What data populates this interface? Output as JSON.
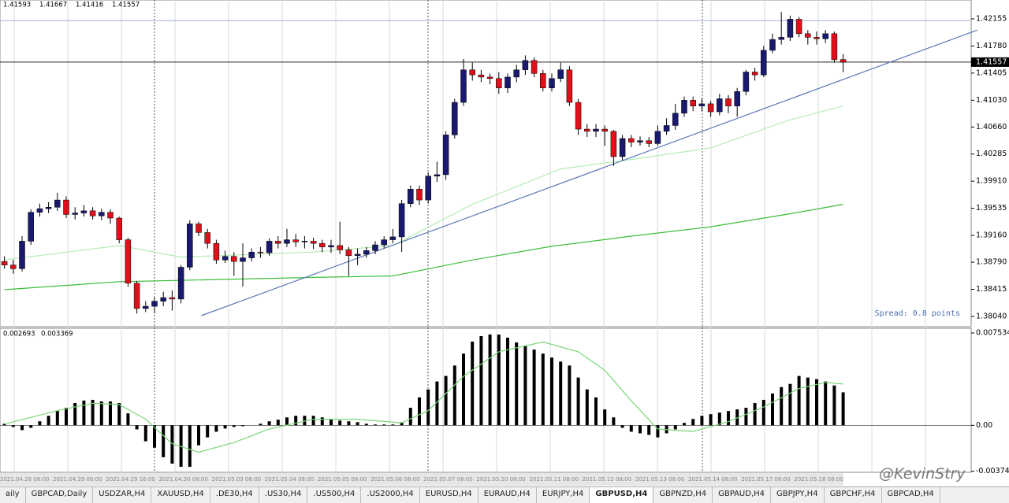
{
  "chart_data": [
    {
      "type": "candlestick",
      "up_color": "#191970",
      "down_color": "#e0101a",
      "xlim": [
        -0.5,
        109.5
      ],
      "ylim": [
        1.37898,
        1.42416
      ],
      "yticks": [
        1.42155,
        {
          "value": 1.4178,
          "label": "1.41780"
        },
        1.41405,
        {
          "value": 1.4103,
          "label": "1.41030"
        },
        {
          "value": 1.4066,
          "label": "1.40660"
        },
        1.40285,
        {
          "value": 1.3991,
          "label": "1.39910"
        },
        1.39535,
        {
          "value": 1.3916,
          "label": "1.39160"
        },
        {
          "value": 1.3879,
          "label": "1.38790"
        },
        1.38415,
        {
          "value": 1.3804,
          "label": "1.38040"
        }
      ],
      "open": [
        1.388,
        1.3875,
        1.387,
        1.3908,
        1.3948,
        1.3953,
        1.3955,
        1.3965,
        1.3945,
        1.3947,
        1.395,
        1.3943,
        1.3948,
        1.394,
        1.391,
        1.385,
        1.3815,
        1.3818,
        1.3825,
        1.383,
        1.3828,
        1.3872,
        1.3932,
        1.392,
        1.3905,
        1.3882,
        1.3887,
        1.388,
        1.3885,
        1.3893,
        1.3892,
        1.3908,
        1.3905,
        1.391,
        1.3907,
        1.3908,
        1.3905,
        1.39,
        1.3902,
        1.3896,
        1.3888,
        1.389,
        1.3895,
        1.3903,
        1.391,
        1.3914,
        1.396,
        1.398,
        1.3965,
        1.3998,
        1.4,
        1.4055,
        1.41,
        1.4145,
        1.4138,
        1.4135,
        1.4133,
        1.412,
        1.4135,
        1.4145,
        1.4158,
        1.414,
        1.412,
        1.4133,
        1.4145,
        1.41,
        1.4063,
        1.406,
        1.4063,
        1.406,
        1.4025,
        1.405,
        1.4045,
        1.4047,
        1.4043,
        1.406,
        1.4068,
        1.4085,
        1.4103,
        1.4095,
        1.4098,
        1.4087,
        1.4105,
        1.4095,
        1.4115,
        1.4142,
        1.4138,
        1.4172,
        1.4187,
        1.419,
        1.4215,
        1.4195,
        1.419,
        1.4188,
        1.4195,
        1.41593
      ],
      "high": [
        1.3887,
        1.3882,
        1.3915,
        1.3952,
        1.396,
        1.3962,
        1.3975,
        1.397,
        1.3955,
        1.3958,
        1.3955,
        1.3953,
        1.3952,
        1.3942,
        1.3913,
        1.3853,
        1.3825,
        1.383,
        1.3838,
        1.384,
        1.3875,
        1.3937,
        1.3935,
        1.3925,
        1.391,
        1.3895,
        1.3893,
        1.3905,
        1.3898,
        1.39,
        1.3912,
        1.3915,
        1.3925,
        1.3918,
        1.3915,
        1.3913,
        1.391,
        1.391,
        1.3935,
        1.39,
        1.3898,
        1.39,
        1.3908,
        1.3915,
        1.3925,
        1.3965,
        1.3985,
        1.3985,
        1.4003,
        1.4018,
        1.406,
        1.4105,
        1.416,
        1.4155,
        1.4145,
        1.414,
        1.4142,
        1.414,
        1.4152,
        1.4165,
        1.4162,
        1.4145,
        1.414,
        1.4155,
        1.415,
        1.4105,
        1.407,
        1.407,
        1.4068,
        1.4062,
        1.4055,
        1.4055,
        1.4053,
        1.4052,
        1.4068,
        1.4078,
        1.4098,
        1.4108,
        1.4108,
        1.4105,
        1.4102,
        1.4112,
        1.411,
        1.412,
        1.4145,
        1.4148,
        1.4178,
        1.4195,
        1.4225,
        1.422,
        1.4218,
        1.42,
        1.4198,
        1.42,
        1.4198,
        1.41667
      ],
      "low": [
        1.387,
        1.3863,
        1.3866,
        1.3903,
        1.3942,
        1.3947,
        1.395,
        1.394,
        1.3938,
        1.3942,
        1.3938,
        1.3937,
        1.3932,
        1.3905,
        1.3845,
        1.3808,
        1.381,
        1.3808,
        1.3818,
        1.3812,
        1.3822,
        1.3868,
        1.3915,
        1.3898,
        1.3877,
        1.3878,
        1.386,
        1.3845,
        1.388,
        1.3885,
        1.3888,
        1.3898,
        1.39,
        1.39,
        1.3898,
        1.3897,
        1.3893,
        1.3892,
        1.389,
        1.386,
        1.3875,
        1.3885,
        1.389,
        1.3898,
        1.3905,
        1.3893,
        1.3955,
        1.3958,
        1.396,
        1.399,
        1.3993,
        1.405,
        1.4095,
        1.413,
        1.4128,
        1.4125,
        1.4112,
        1.4113,
        1.4128,
        1.4138,
        1.4135,
        1.4115,
        1.4115,
        1.4128,
        1.4095,
        1.4055,
        1.4052,
        1.4052,
        1.404,
        1.4012,
        1.402,
        1.4038,
        1.404,
        1.4038,
        1.404,
        1.4055,
        1.4062,
        1.408,
        1.4088,
        1.4088,
        1.408,
        1.4082,
        1.4085,
        1.408,
        1.411,
        1.413,
        1.4135,
        1.4168,
        1.418,
        1.4185,
        1.419,
        1.418,
        1.418,
        1.4182,
        1.4155,
        1.41416
      ],
      "close": [
        1.3875,
        1.387,
        1.3908,
        1.3948,
        1.3953,
        1.3955,
        1.3965,
        1.3945,
        1.3947,
        1.395,
        1.3943,
        1.3948,
        1.394,
        1.391,
        1.385,
        1.3815,
        1.3818,
        1.3825,
        1.383,
        1.3828,
        1.3872,
        1.3932,
        1.392,
        1.3905,
        1.3882,
        1.3887,
        1.388,
        1.3885,
        1.3893,
        1.3892,
        1.3908,
        1.3905,
        1.391,
        1.3907,
        1.3908,
        1.3905,
        1.39,
        1.3902,
        1.3896,
        1.3888,
        1.389,
        1.3895,
        1.3903,
        1.391,
        1.3914,
        1.396,
        1.398,
        1.3965,
        1.3998,
        1.4,
        1.4055,
        1.41,
        1.4145,
        1.4138,
        1.4135,
        1.4133,
        1.412,
        1.4135,
        1.4145,
        1.4158,
        1.414,
        1.412,
        1.4133,
        1.4145,
        1.41,
        1.4063,
        1.406,
        1.4063,
        1.406,
        1.4025,
        1.405,
        1.4045,
        1.4047,
        1.4043,
        1.406,
        1.4068,
        1.4085,
        1.4103,
        1.4095,
        1.4098,
        1.4087,
        1.4105,
        1.4095,
        1.4115,
        1.4142,
        1.4138,
        1.4172,
        1.4187,
        1.419,
        1.4215,
        1.4195,
        1.419,
        1.4188,
        1.4195,
        1.4159,
        1.41557
      ],
      "overlays": [
        {
          "color": "#b4ecb4",
          "x": [
            0,
            13,
            20,
            35,
            44,
            53,
            63,
            71,
            80,
            89,
            95
          ],
          "values": [
            1.3882,
            1.3902,
            1.3886,
            1.3893,
            1.3902,
            1.3959,
            1.4008,
            1.4021,
            1.4037,
            1.4076,
            1.4095
          ]
        },
        {
          "color": "#3cbf3c",
          "x": [
            0,
            13,
            35,
            44,
            53,
            62,
            71,
            80,
            89,
            95
          ],
          "values": [
            1.3841,
            1.3852,
            1.3858,
            1.386,
            1.3882,
            1.3901,
            1.3915,
            1.3928,
            1.3946,
            1.3959
          ]
        },
        {
          "color": "#5a78b4",
          "x": [
            22.3,
            110.2
          ],
          "values": [
            1.3805,
            1.42
          ]
        }
      ],
      "hlines": [
        {
          "value": 1.4213,
          "color": "#9fb3d6"
        }
      ],
      "annotation": "Spread: 0.8 points",
      "time_labels": [
        "2021.04.28 08:00",
        "2021.04.29 00:00",
        "2021.04.29 16:00",
        "2021.04.30 08:00",
        "2021.05.03 08:00",
        "2021.05.04 08:00",
        "2021.05.05 08:00",
        "2021.05.06 08:00",
        "2021.05.07 08:00",
        "2021.05.10 08:00",
        "2021.05.11 08:00",
        "2021.05.12 08:00",
        "2021.05.13 08:00",
        "2021.05.14 08:00",
        "2021.05.17 08:00",
        "2021.05.18 08:00"
      ]
    },
    {
      "type": "bar",
      "color": "#000000",
      "xlim": [
        -0.5,
        109.5
      ],
      "ylim": [
        -0.00383,
        0.00792
      ],
      "yticks": [
        0.007534,
        {
          "value": 0,
          "label": "0.00"
        },
        -0.00374
      ],
      "values": [
        0.00013,
        -0.00013,
        -0.00039,
        -0.0002,
        0.00033,
        0.00078,
        0.00117,
        0.00143,
        0.00182,
        0.00202,
        0.00208,
        0.00195,
        0.00195,
        0.00182,
        0.00098,
        -0.00033,
        -0.0013,
        -0.00182,
        -0.0026,
        -0.00312,
        -0.00338,
        -0.00338,
        -0.00163,
        -0.00098,
        -0.00052,
        -0.00026,
        -0.00013,
        -7e-05,
        0,
        0.00013,
        0.00033,
        0.00046,
        0.00065,
        0.00078,
        0.00078,
        0.00078,
        0.00065,
        0.00052,
        0.00039,
        0.00033,
        0.00026,
        0.00013,
        7e-05,
        7e-05,
        7e-05,
        0.00026,
        0.00143,
        0.00228,
        0.00293,
        0.00358,
        0.00403,
        0.00488,
        0.00585,
        0.00683,
        0.00728,
        0.00741,
        0.00741,
        0.00715,
        0.00676,
        0.0065,
        0.00618,
        0.00585,
        0.00553,
        0.0052,
        0.00488,
        0.0039,
        0.00293,
        0.00228,
        0.0013,
        0.00065,
        -0.0002,
        -0.00052,
        -0.00065,
        -0.00078,
        -0.00098,
        -0.00065,
        -0.00033,
        0.0002,
        0.00052,
        0.00078,
        0.00091,
        0.00104,
        0.00117,
        0.0013,
        0.00143,
        0.00182,
        0.00208,
        0.0026,
        0.00312,
        0.00338,
        0.00403,
        0.0039,
        0.00377,
        0.00358,
        0.00325,
        0.002693
      ],
      "signal": {
        "color": "#7ad67a",
        "x": [
          0,
          6,
          10,
          13,
          16,
          19,
          22,
          26,
          30,
          35,
          40,
          45,
          48,
          52,
          56,
          61,
          65,
          68,
          71,
          74,
          78,
          82,
          86,
          90,
          93,
          95
        ],
        "values": [
          0.0001,
          0.0012,
          0.0018,
          0.0017,
          0.0005,
          -0.0015,
          -0.0022,
          -0.0014,
          -0.0003,
          0.0005,
          0.0005,
          0.0002,
          0.0012,
          0.004,
          0.006,
          0.0068,
          0.006,
          0.0045,
          0.002,
          -0.0003,
          -0.0005,
          0.0003,
          0.0015,
          0.003,
          0.0035,
          0.003369
        ]
      }
    }
  ],
  "tabs": [
    "aily",
    "GBPCAD,Daily",
    "USDZAR,H4",
    "XAUUSD,H4",
    ".DE30,H4",
    ".US30,H4",
    ".US500,H4",
    ".US2000,H4",
    "EURUSD,H4",
    "EURAUD,H4",
    "EURJPY,H4",
    "GBPUSD,H4",
    "GBPNZD,H4",
    "GBPAUD,H4",
    "GBPJPY,H4",
    "GBPCHF,H4",
    "GBPCAD,H4"
  ],
  "active_tab": 11,
  "watermark": "@KevinStry"
}
